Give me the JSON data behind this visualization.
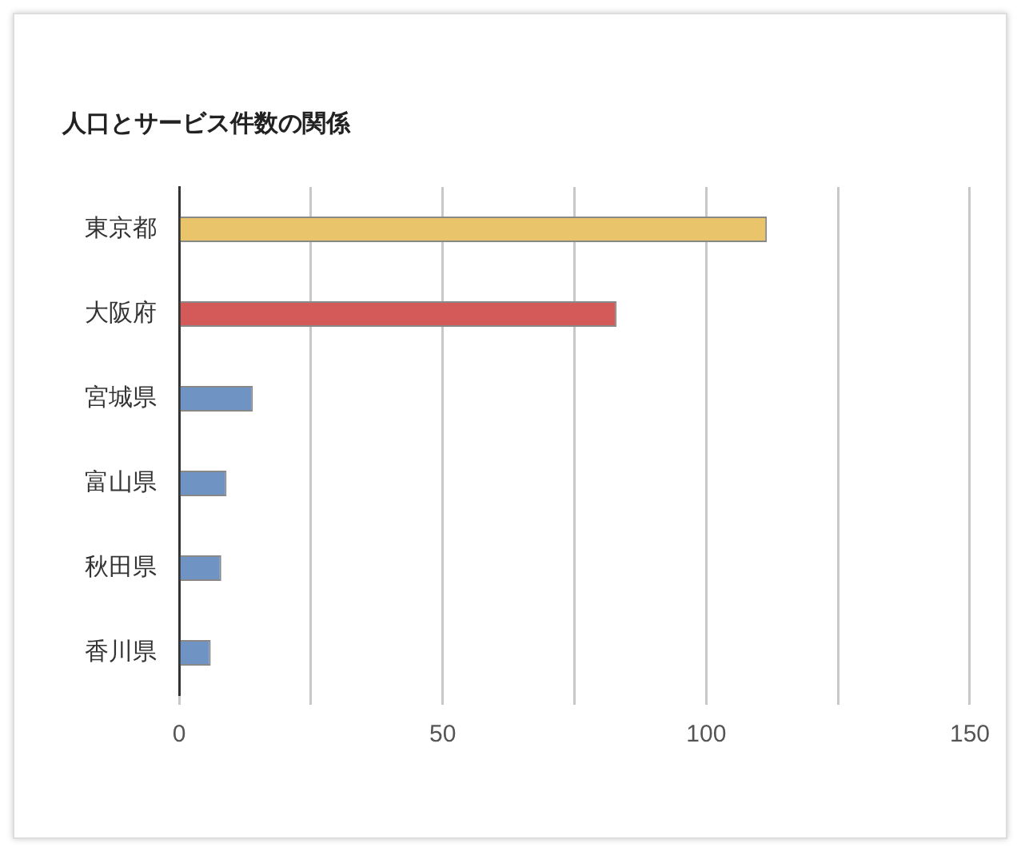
{
  "chart_data": {
    "type": "bar",
    "orientation": "horizontal",
    "title": "人口とサービス件数の関係",
    "categories": [
      "東京都",
      "大阪府",
      "宮城県",
      "富山県",
      "秋田県",
      "香川県"
    ],
    "values": [
      111.5,
      83,
      14,
      9,
      8,
      6
    ],
    "colors": [
      "#e9c46a",
      "#d45a5a",
      "#6f93c3",
      "#6f93c3",
      "#6f93c3",
      "#6f93c3"
    ],
    "xlim": [
      0,
      150
    ],
    "xticks": [
      0,
      {
        "value": 25,
        "label": null
      },
      50,
      {
        "value": 75,
        "label": null
      },
      100,
      {
        "value": 125,
        "label": null
      },
      150
    ],
    "grid": "x",
    "legend": false
  }
}
